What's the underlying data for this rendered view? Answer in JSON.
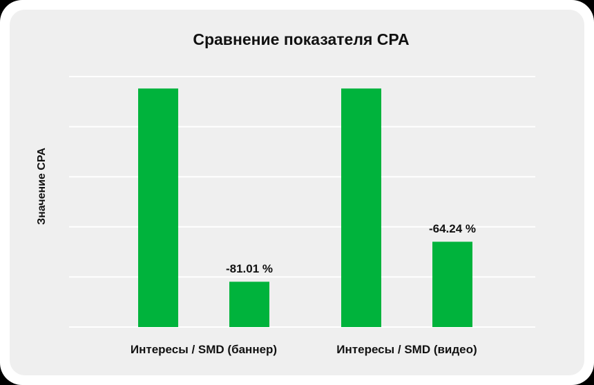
{
  "chart_data": {
    "type": "bar",
    "title": "Сравнение показателя CPA",
    "xlabel": "",
    "ylabel": "Значение CPA",
    "grid": true,
    "categories": [
      "Интересы / SMD (баннер)",
      "Интересы / SMD (видео)"
    ],
    "series": [
      {
        "values": [
          100,
          100
        ]
      },
      {
        "values": [
          18.99,
          35.76
        ]
      }
    ],
    "data_labels": [
      {
        "category_index": 0,
        "series_index": 1,
        "text": "-81.01 %"
      },
      {
        "category_index": 1,
        "series_index": 1,
        "text": "-64.24 %"
      }
    ],
    "ylim": [
      0,
      105
    ],
    "colors": {
      "bar": "#00b33c",
      "grid": "#ffffff",
      "panel": "#efefef"
    }
  }
}
